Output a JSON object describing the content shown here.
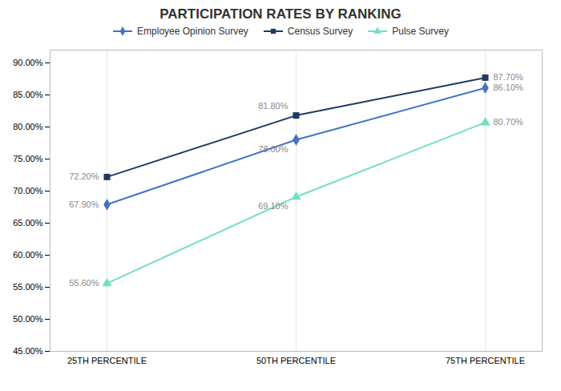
{
  "chart_data": {
    "type": "line",
    "title": "PARTICIPATION RATES BY RANKING",
    "categories": [
      "25TH PERCENTILE",
      "50TH PERCENTILE",
      "75TH PERCENTILE"
    ],
    "series": [
      {
        "name": "Employee Opinion Survey",
        "color": "#4472C4",
        "marker": "diamond",
        "values": [
          67.9,
          78.0,
          86.1
        ],
        "value_labels": [
          "67.90%",
          "78.00%",
          "86.10%"
        ]
      },
      {
        "name": "Census Survey",
        "color": "#1F3864",
        "marker": "square",
        "values": [
          72.2,
          81.8,
          87.7
        ],
        "value_labels": [
          "72.20%",
          "81.80%",
          "87.70%"
        ]
      },
      {
        "name": "Pulse Survey",
        "color": "#70E0C0",
        "marker": "triangle",
        "values": [
          55.6,
          69.1,
          80.7
        ],
        "value_labels": [
          "55.60%",
          "69.10%",
          "80.70%"
        ]
      }
    ],
    "ylim": [
      45.0,
      92.0
    ],
    "yticks": [
      {
        "value": 45,
        "label": "45.00%"
      },
      {
        "value": 50,
        "label": "50.00%"
      },
      {
        "value": 55,
        "label": "55.00%"
      },
      {
        "value": 60,
        "label": "60.00%"
      },
      {
        "value": 65,
        "label": "65.00%"
      },
      {
        "value": 70,
        "label": "70.00%"
      },
      {
        "value": 75,
        "label": "75.00%"
      },
      {
        "value": 80,
        "label": "80.00%"
      },
      {
        "value": 85,
        "label": "85.00%"
      },
      {
        "value": 90,
        "label": "90.00%"
      }
    ],
    "grid": "x",
    "legend": "top",
    "data_labels": true
  }
}
